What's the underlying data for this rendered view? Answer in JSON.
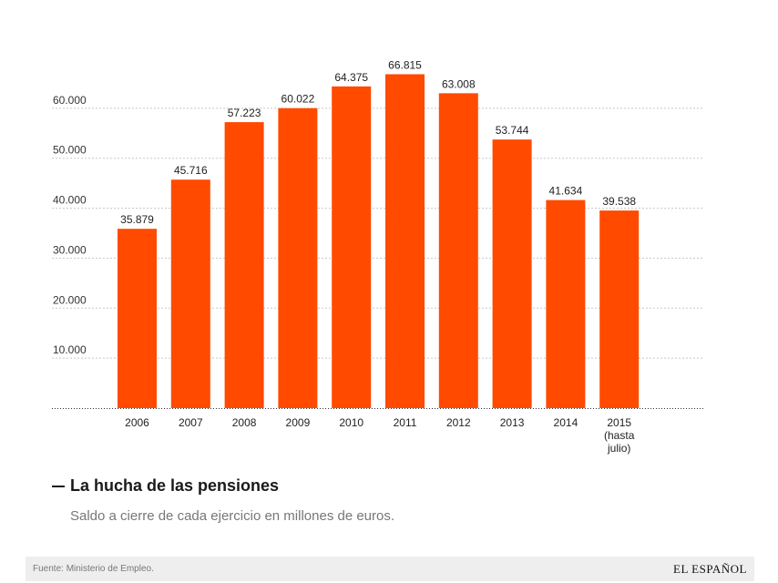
{
  "chart_data": {
    "type": "bar",
    "categories": [
      "2006",
      "2007",
      "2008",
      "2009",
      "2010",
      "2011",
      "2012",
      "2013",
      "2014",
      "2015 (hasta julio)"
    ],
    "category_lines": [
      [
        "2006"
      ],
      [
        "2007"
      ],
      [
        "2008"
      ],
      [
        "2009"
      ],
      [
        "2010"
      ],
      [
        "2011"
      ],
      [
        "2012"
      ],
      [
        "2013"
      ],
      [
        "2014"
      ],
      [
        "2015",
        "(hasta",
        "julio)"
      ]
    ],
    "values": [
      35879,
      45716,
      57223,
      60022,
      64375,
      66815,
      63008,
      53744,
      41634,
      39538
    ],
    "value_labels": [
      "35.879",
      "45.716",
      "57.223",
      "60.022",
      "64.375",
      "66.815",
      "63.008",
      "53.744",
      "41.634",
      "39.538"
    ],
    "yticks": [
      10000,
      20000,
      30000,
      40000,
      50000,
      60000
    ],
    "ytick_labels": [
      "10.000",
      "20.000",
      "30.000",
      "40.000",
      "50.000",
      "60.000"
    ],
    "ylim": [
      0,
      70000
    ],
    "grid": true,
    "bar_color": "#ff4a00",
    "title": "La hucha de las pensiones",
    "subtitle": "Saldo a cierre de cada ejercicio en millones de euros.",
    "xlabel": "",
    "ylabel": ""
  },
  "footer": {
    "source": "Fuente: Ministerio de Empleo.",
    "brand": "EL ESPAÑOL"
  }
}
